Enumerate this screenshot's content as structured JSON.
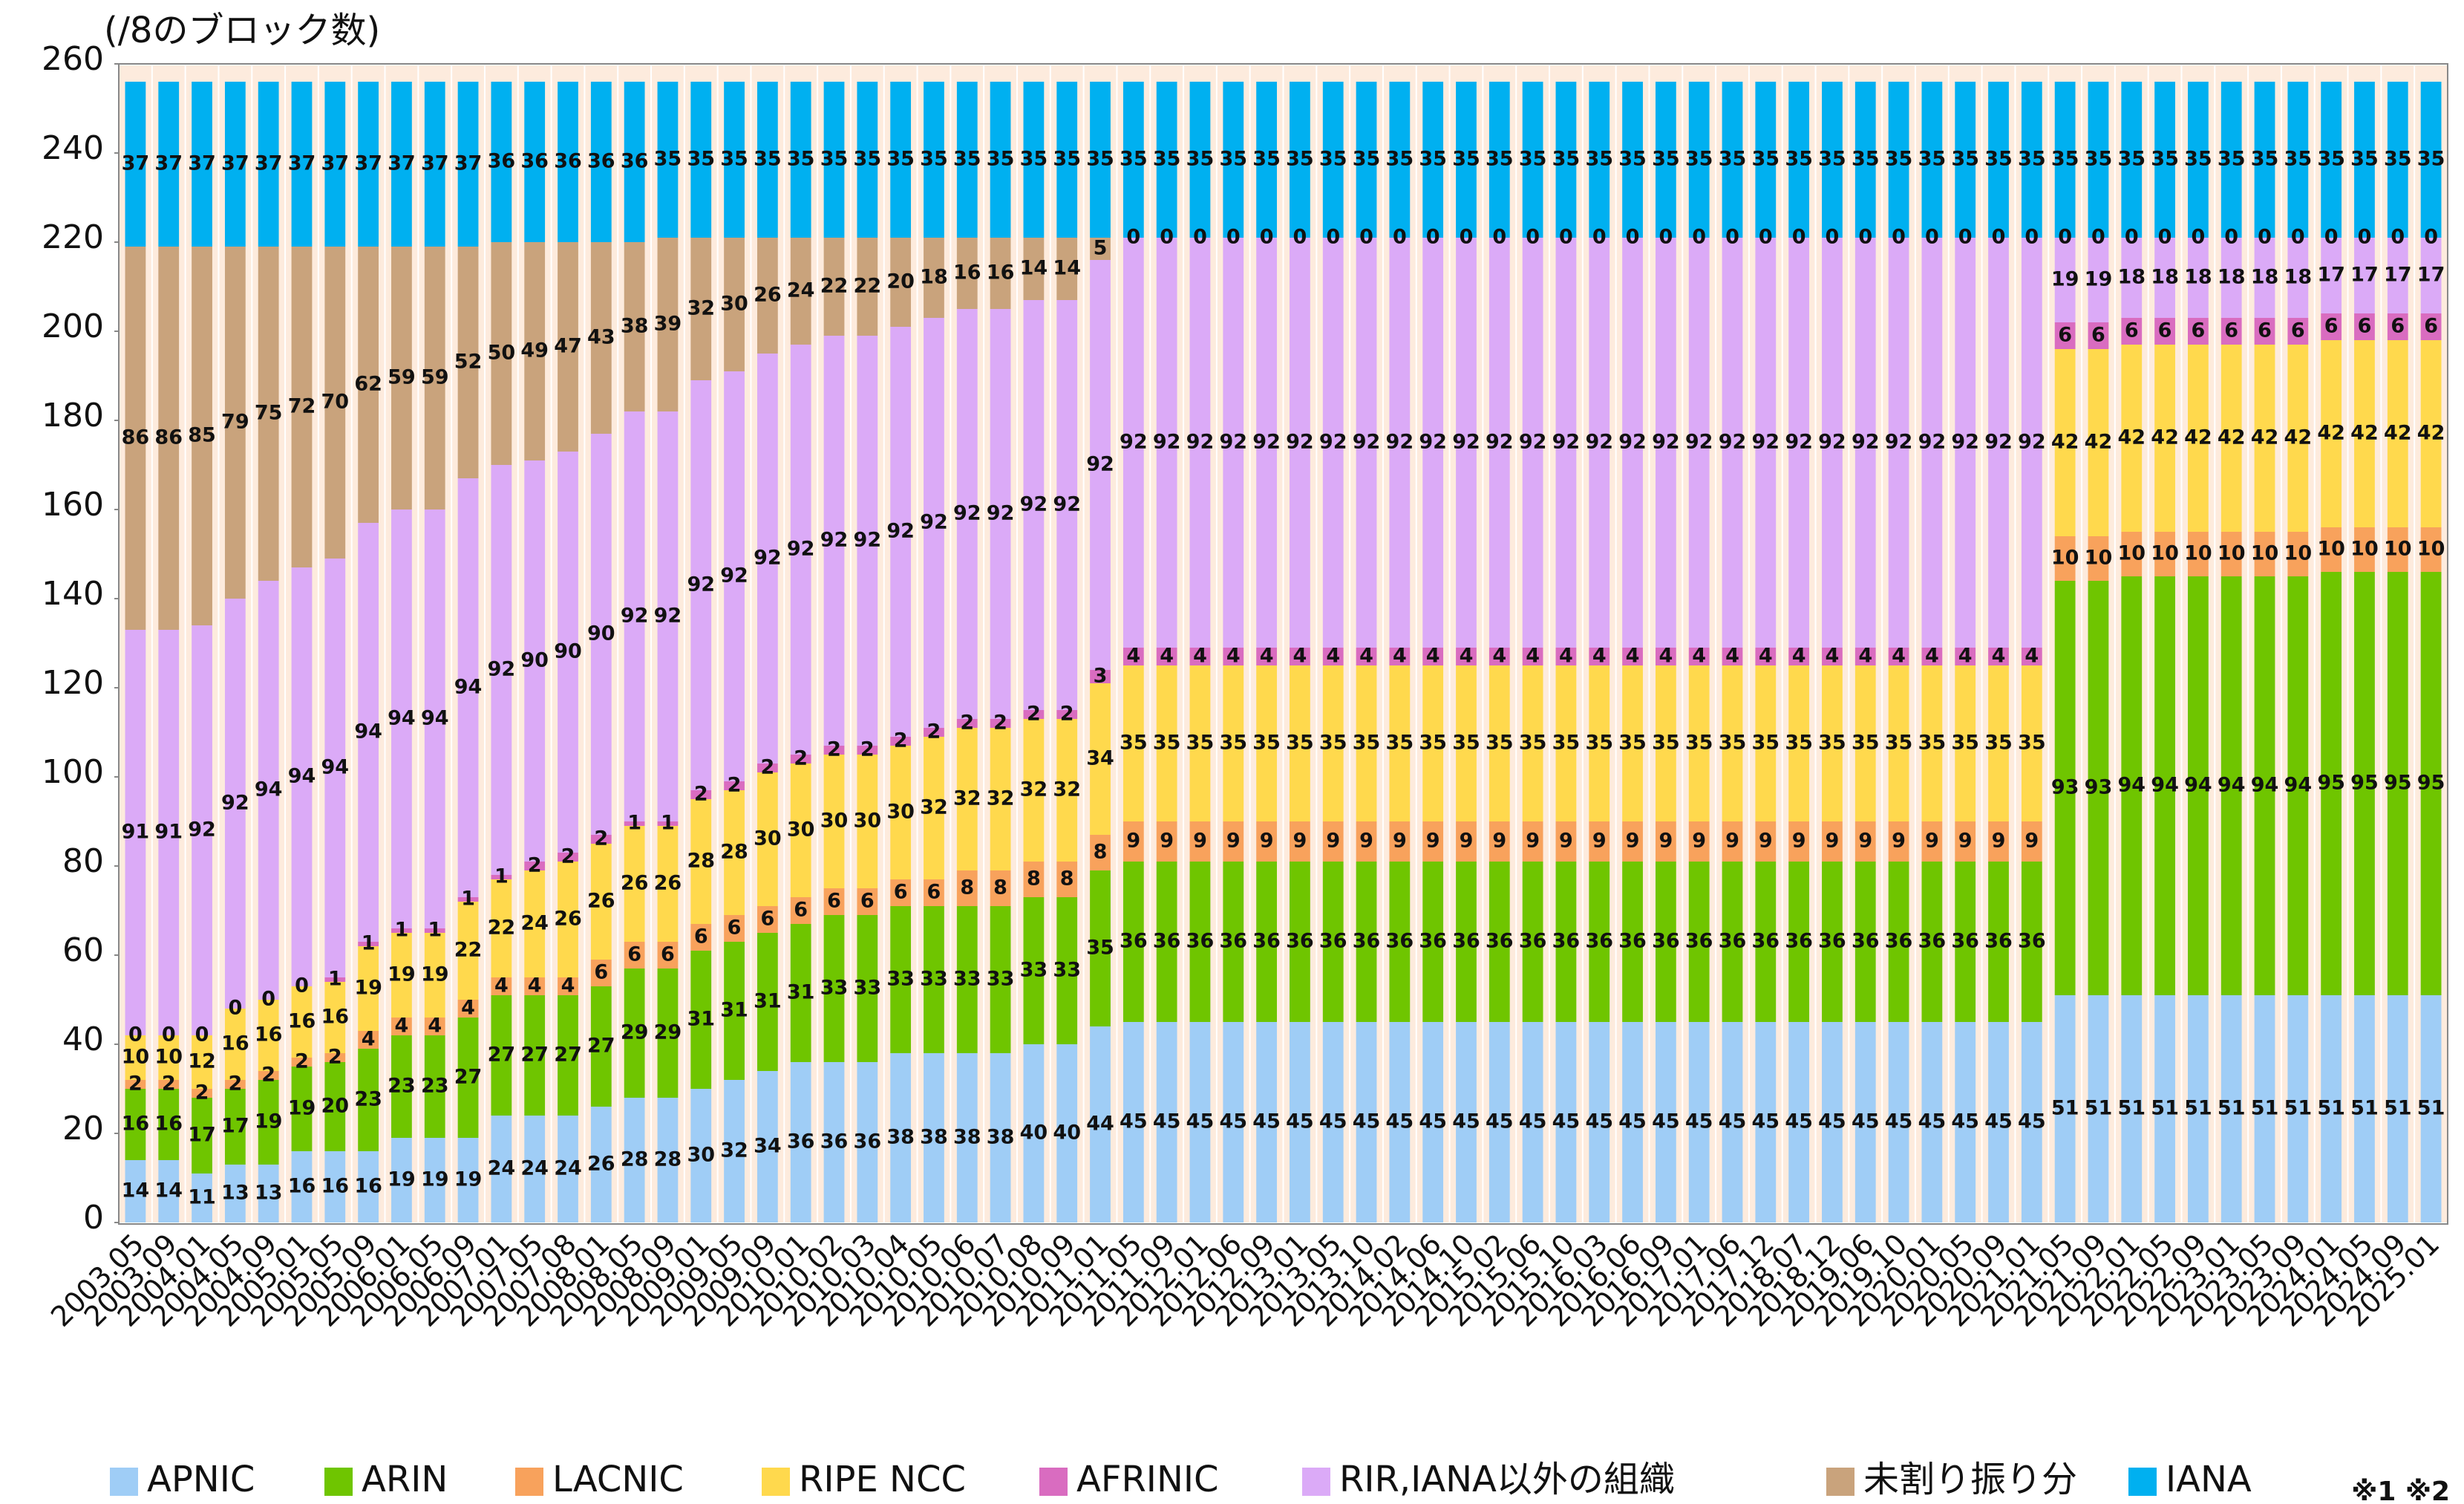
{
  "chart_data": {
    "type": "stacked_bar",
    "y_label": "(/8のブロック数)",
    "note": "※1 ※2",
    "legend": "bottom",
    "grid": false,
    "ylim": [
      0,
      260
    ],
    "yticks": [
      0,
      20,
      40,
      60,
      80,
      100,
      120,
      140,
      160,
      180,
      200,
      220,
      240,
      260
    ],
    "categories": [
      "2003.05",
      "2003.09",
      "2004.01",
      "2004.05",
      "2004.09",
      "2005.01",
      "2005.05",
      "2005.09",
      "2006.01",
      "2006.05",
      "2006.09",
      "2007.01",
      "2007.05",
      "2007.08",
      "2008.01",
      "2008.05",
      "2008.09",
      "2009.01",
      "2009.05",
      "2009.09",
      "2010.01",
      "2010.02",
      "2010.03",
      "2010.04",
      "2010.05",
      "2010.06",
      "2010.07",
      "2010.08",
      "2010.09",
      "2011.01",
      "2011.05",
      "2011.09",
      "2012.01",
      "2012.06",
      "2012.09",
      "2013.01",
      "2013.05",
      "2013.10",
      "2014.02",
      "2014.06",
      "2014.10",
      "2015.02",
      "2015.06",
      "2015.10",
      "2016.03",
      "2016.06",
      "2016.09",
      "2017.01",
      "2017.06",
      "2017.12",
      "2018.07",
      "2018.12",
      "2019.06",
      "2019.10",
      "2020.01",
      "2020.05",
      "2020.09",
      "2021.01",
      "2021.05",
      "2021.09",
      "2022.01",
      "2022.05",
      "2022.09",
      "2023.01",
      "2023.05",
      "2023.09",
      "2024.01",
      "2024.05",
      "2024.09",
      "2025.01"
    ],
    "series": [
      {
        "name": "APNIC",
        "color": "#9fcdf6",
        "values": [
          14,
          14,
          11,
          13,
          13,
          16,
          16,
          16,
          19,
          19,
          19,
          24,
          24,
          24,
          26,
          28,
          28,
          30,
          32,
          34,
          36,
          36,
          36,
          38,
          38,
          38,
          38,
          40,
          40,
          44,
          45,
          45,
          45,
          45,
          45,
          45,
          45,
          45,
          45,
          45,
          45,
          45,
          45,
          45,
          45,
          45,
          45,
          45,
          45,
          45,
          45,
          45,
          45,
          45,
          45,
          45,
          45,
          45,
          51,
          51,
          51,
          51,
          51,
          51,
          51,
          51,
          51,
          51,
          51,
          51
        ]
      },
      {
        "name": "ARIN",
        "color": "#6fc500",
        "values": [
          16,
          16,
          17,
          17,
          19,
          19,
          20,
          23,
          23,
          23,
          27,
          27,
          27,
          27,
          27,
          29,
          29,
          31,
          31,
          31,
          31,
          33,
          33,
          33,
          33,
          33,
          33,
          33,
          33,
          35,
          36,
          36,
          36,
          36,
          36,
          36,
          36,
          36,
          36,
          36,
          36,
          36,
          36,
          36,
          36,
          36,
          36,
          36,
          36,
          36,
          36,
          36,
          36,
          36,
          36,
          36,
          36,
          36,
          93,
          93,
          94,
          94,
          94,
          94,
          94,
          94,
          95,
          95,
          95,
          95
        ]
      },
      {
        "name": "LACNIC",
        "color": "#f8a25c",
        "values": [
          2,
          2,
          2,
          2,
          2,
          2,
          2,
          4,
          4,
          4,
          4,
          4,
          4,
          4,
          6,
          6,
          6,
          6,
          6,
          6,
          6,
          6,
          6,
          6,
          6,
          8,
          8,
          8,
          8,
          8,
          9,
          9,
          9,
          9,
          9,
          9,
          9,
          9,
          9,
          9,
          9,
          9,
          9,
          9,
          9,
          9,
          9,
          9,
          9,
          9,
          9,
          9,
          9,
          9,
          9,
          9,
          9,
          9,
          10,
          10,
          10,
          10,
          10,
          10,
          10,
          10,
          10,
          10,
          10,
          10
        ]
      },
      {
        "name": "RIPE NCC",
        "color": "#ffd94d",
        "values": [
          10,
          10,
          12,
          16,
          16,
          16,
          16,
          19,
          19,
          19,
          22,
          22,
          24,
          26,
          26,
          26,
          26,
          28,
          28,
          30,
          30,
          30,
          30,
          30,
          32,
          32,
          32,
          32,
          32,
          34,
          35,
          35,
          35,
          35,
          35,
          35,
          35,
          35,
          35,
          35,
          35,
          35,
          35,
          35,
          35,
          35,
          35,
          35,
          35,
          35,
          35,
          35,
          35,
          35,
          35,
          35,
          35,
          35,
          42,
          42,
          42,
          42,
          42,
          42,
          42,
          42,
          42,
          42,
          42,
          42
        ]
      },
      {
        "name": "AFRINIC",
        "color": "#d96cc0",
        "values": [
          0,
          0,
          0,
          0,
          0,
          0,
          1,
          1,
          1,
          1,
          1,
          1,
          2,
          2,
          2,
          1,
          1,
          2,
          2,
          2,
          2,
          2,
          2,
          2,
          2,
          2,
          2,
          2,
          2,
          3,
          4,
          4,
          4,
          4,
          4,
          4,
          4,
          4,
          4,
          4,
          4,
          4,
          4,
          4,
          4,
          4,
          4,
          4,
          4,
          4,
          4,
          4,
          4,
          4,
          4,
          4,
          4,
          4,
          6,
          6,
          6,
          6,
          6,
          6,
          6,
          6,
          6,
          6,
          6,
          6
        ]
      },
      {
        "name": "RIR,IANA以外の組織",
        "color": "#dbaaf7",
        "values": [
          91,
          91,
          92,
          92,
          94,
          94,
          94,
          94,
          94,
          94,
          94,
          92,
          90,
          90,
          90,
          92,
          92,
          92,
          92,
          92,
          92,
          92,
          92,
          92,
          92,
          92,
          92,
          92,
          92,
          92,
          92,
          92,
          92,
          92,
          92,
          92,
          92,
          92,
          92,
          92,
          92,
          92,
          92,
          92,
          92,
          92,
          92,
          92,
          92,
          92,
          92,
          92,
          92,
          92,
          92,
          92,
          92,
          92,
          19,
          19,
          18,
          18,
          18,
          18,
          18,
          18,
          17,
          17,
          17,
          17
        ]
      },
      {
        "name": "未割り振り分",
        "color": "#c9a37c",
        "values": [
          86,
          86,
          85,
          79,
          75,
          72,
          70,
          62,
          59,
          59,
          52,
          50,
          49,
          47,
          43,
          38,
          39,
          32,
          30,
          26,
          24,
          22,
          22,
          20,
          18,
          16,
          16,
          14,
          14,
          5,
          0,
          0,
          0,
          0,
          0,
          0,
          0,
          0,
          0,
          0,
          0,
          0,
          0,
          0,
          0,
          0,
          0,
          0,
          0,
          0,
          0,
          0,
          0,
          0,
          0,
          0,
          0,
          0,
          0,
          0,
          0,
          0,
          0,
          0,
          0,
          0,
          0,
          0,
          0,
          0
        ]
      },
      {
        "name": "IANA",
        "color": "#00b0f0",
        "values": [
          37,
          37,
          37,
          37,
          37,
          37,
          37,
          37,
          37,
          37,
          37,
          36,
          36,
          36,
          36,
          36,
          35,
          35,
          35,
          35,
          35,
          35,
          35,
          35,
          35,
          35,
          35,
          35,
          35,
          35,
          35,
          35,
          35,
          35,
          35,
          35,
          35,
          35,
          35,
          35,
          35,
          35,
          35,
          35,
          35,
          35,
          35,
          35,
          35,
          35,
          35,
          35,
          35,
          35,
          35,
          35,
          35,
          35,
          35,
          35,
          35,
          35,
          35,
          35,
          35,
          35,
          35,
          35,
          35,
          35
        ]
      }
    ]
  }
}
